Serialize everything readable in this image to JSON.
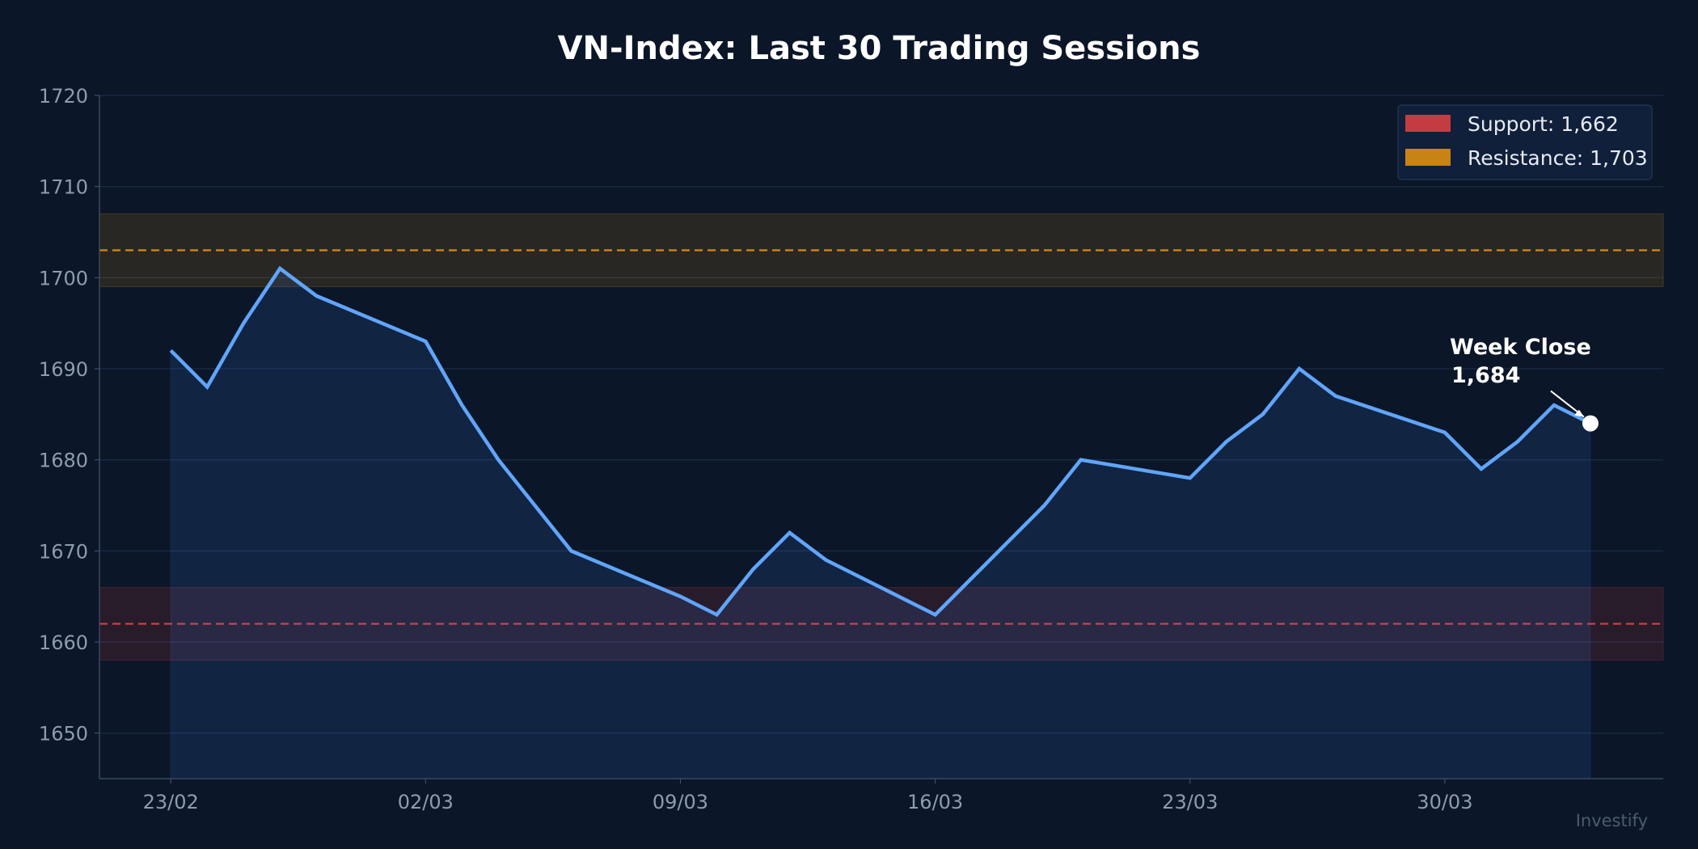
{
  "chart_data": {
    "type": "line",
    "title": "VN-Index: Last 30 Trading Sessions",
    "xlabel": "",
    "ylabel": "",
    "ylim": [
      1645,
      1720
    ],
    "yticks": [
      1650,
      1660,
      1670,
      1680,
      1690,
      1700,
      1710,
      1720
    ],
    "xticks": [
      "23/02",
      "02/03",
      "09/03",
      "16/03",
      "23/03",
      "30/03"
    ],
    "grid": true,
    "legend_position": "top-right",
    "x": [
      "23/02",
      "24/02",
      "25/02",
      "26/02",
      "27/02",
      "02/03",
      "03/03",
      "04/03",
      "05/03",
      "06/03",
      "09/03",
      "10/03",
      "11/03",
      "12/03",
      "13/03",
      "16/03",
      "17/03",
      "18/03",
      "19/03",
      "20/03",
      "23/03",
      "24/03",
      "25/03",
      "26/03",
      "27/03",
      "30/03",
      "31/03",
      "01/04",
      "02/04",
      "03/04"
    ],
    "values": [
      1692,
      1688,
      1695,
      1701,
      1698,
      1693,
      1686,
      1680,
      1675,
      1670,
      1665,
      1663,
      1668,
      1672,
      1669,
      1663,
      1667,
      1671,
      1675,
      1680,
      1678,
      1682,
      1685,
      1690,
      1687,
      1683,
      1679,
      1682,
      1686,
      1684
    ],
    "series_color": "#60a5fa",
    "levels": [
      {
        "label": "Support: 1,662",
        "value": 1662,
        "band": [
          1658,
          1666
        ],
        "color": "#ef4444"
      },
      {
        "label": "Resistance: 1,703",
        "value": 1703,
        "band": [
          1699,
          1707
        ],
        "color": "#f59e0b"
      }
    ],
    "annotation": {
      "line1": "Week Close",
      "line2": "1,684",
      "x": "03/04",
      "value": 1684
    },
    "watermark": "Investify"
  }
}
